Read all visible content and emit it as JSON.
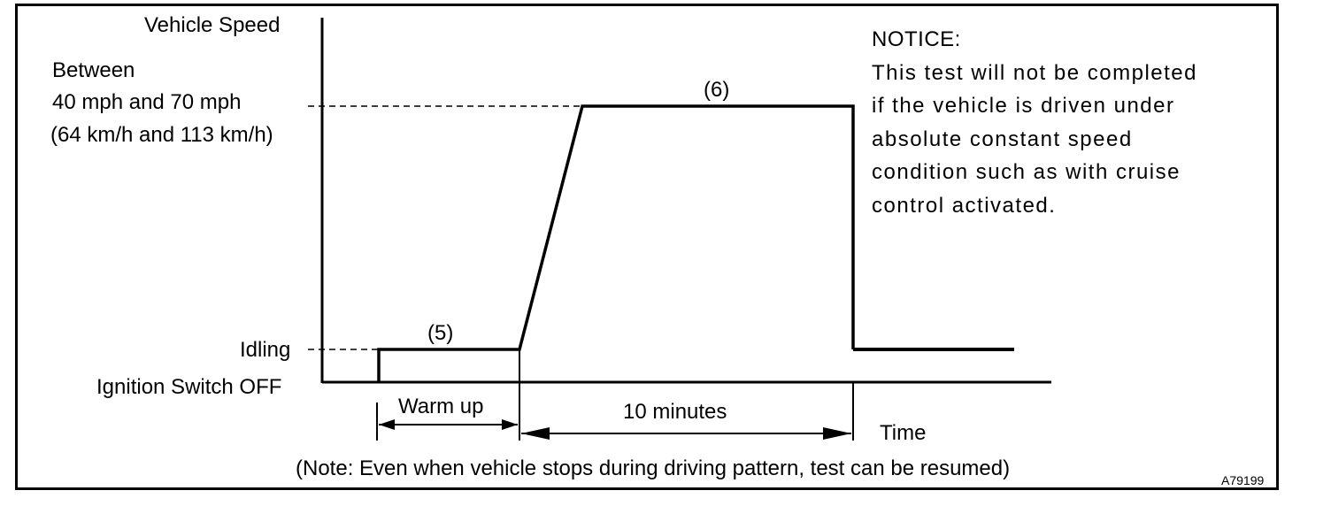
{
  "labels": {
    "y_axis": "Vehicle Speed",
    "between_line1": "Between",
    "between_line2": "40 mph and 70 mph",
    "between_line3": "(64 km/h and 113 km/h)",
    "idling": "Idling",
    "ignition_off": "Ignition Switch OFF",
    "step5": "(5)",
    "step6": "(6)",
    "warm_up": "Warm up",
    "ten_minutes": "10 minutes",
    "time": "Time",
    "note": "(Note: Even when vehicle stops during driving pattern, test can be resumed)",
    "figure_code": "A79199"
  },
  "notice": {
    "heading": "NOTICE:",
    "lines": [
      "This test will not be completed",
      "if the vehicle is driven under",
      "absolute constant speed",
      "condition such as with cruise",
      "control activated."
    ]
  }
}
